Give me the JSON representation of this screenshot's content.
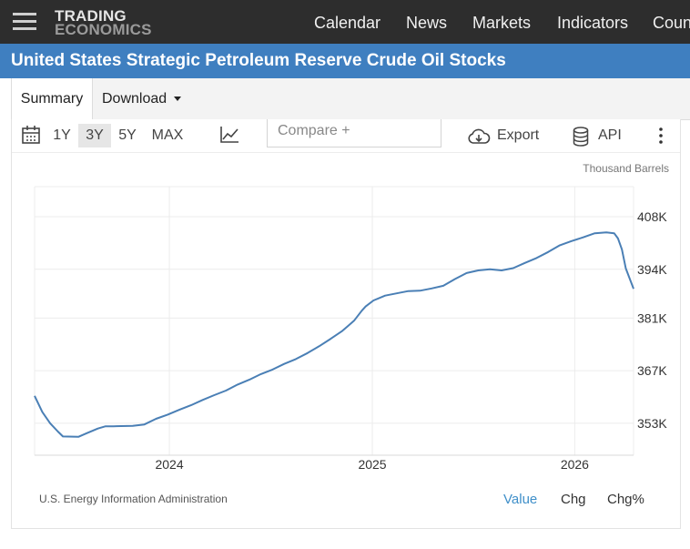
{
  "nav": {
    "logo_line1": "TRADING",
    "logo_line2": "ECONOMICS",
    "items": [
      "Calendar",
      "News",
      "Markets",
      "Indicators",
      "Coun"
    ]
  },
  "title": "United States Strategic Petroleum Reserve Crude Oil Stocks",
  "tabs": {
    "summary": "Summary",
    "download": "Download"
  },
  "toolbar": {
    "ranges": [
      "1Y",
      "3Y",
      "5Y",
      "MAX"
    ],
    "active_range": "3Y",
    "compare_placeholder": "Compare +",
    "export": "Export",
    "api": "API"
  },
  "footer": {
    "source": "U.S. Energy Information Administration",
    "value": "Value",
    "chg": "Chg",
    "chg_pct": "Chg%"
  },
  "colors": {
    "line": "#4a7fb5",
    "title_bar": "#3f7fc0",
    "nav_bg": "#2d2d2d",
    "active_link": "#3f8fc9"
  },
  "chart_data": {
    "type": "line",
    "unit_label": "Thousand Barrels",
    "x_ticks": [
      "2024",
      "2025",
      "2026"
    ],
    "y_ticks": [
      "408K",
      "394K",
      "381K",
      "367K",
      "353K"
    ],
    "ylim": [
      344.5,
      416
    ],
    "xlim": [
      "2023-05-03",
      "2026-04-17"
    ],
    "grid": true,
    "series": [
      {
        "values": [
          [
            "2023-05-03",
            360.3
          ],
          [
            "2023-05-17",
            356.0
          ],
          [
            "2023-05-31",
            353.0
          ],
          [
            "2023-06-14",
            350.8
          ],
          [
            "2023-06-23",
            349.5
          ],
          [
            "2023-07-21",
            349.4
          ],
          [
            "2023-08-04",
            350.3
          ],
          [
            "2023-08-25",
            351.6
          ],
          [
            "2023-09-08",
            352.2
          ],
          [
            "2023-09-22",
            352.2
          ],
          [
            "2023-10-27",
            352.3
          ],
          [
            "2023-11-17",
            352.7
          ],
          [
            "2023-12-08",
            354.2
          ],
          [
            "2023-12-29",
            355.3
          ],
          [
            "2024-01-19",
            356.6
          ],
          [
            "2024-02-09",
            357.8
          ],
          [
            "2024-03-01",
            359.2
          ],
          [
            "2024-03-22",
            360.5
          ],
          [
            "2024-04-12",
            361.7
          ],
          [
            "2024-05-03",
            363.3
          ],
          [
            "2024-05-24",
            364.6
          ],
          [
            "2024-06-14",
            366.1
          ],
          [
            "2024-07-05",
            367.3
          ],
          [
            "2024-07-26",
            368.8
          ],
          [
            "2024-08-16",
            370.1
          ],
          [
            "2024-09-06",
            371.7
          ],
          [
            "2024-09-27",
            373.5
          ],
          [
            "2024-10-18",
            375.5
          ],
          [
            "2024-11-08",
            377.6
          ],
          [
            "2024-11-29",
            380.3
          ],
          [
            "2024-12-13",
            383.0
          ],
          [
            "2024-12-20",
            384.1
          ],
          [
            "2025-01-03",
            385.7
          ],
          [
            "2025-01-24",
            387.0
          ],
          [
            "2025-02-14",
            387.6
          ],
          [
            "2025-03-07",
            388.2
          ],
          [
            "2025-03-28",
            388.3
          ],
          [
            "2025-04-18",
            388.9
          ],
          [
            "2025-05-09",
            389.6
          ],
          [
            "2025-05-30",
            391.4
          ],
          [
            "2025-06-20",
            393.0
          ],
          [
            "2025-07-11",
            393.7
          ],
          [
            "2025-08-01",
            394.0
          ],
          [
            "2025-08-22",
            393.7
          ],
          [
            "2025-09-12",
            394.3
          ],
          [
            "2025-10-03",
            395.7
          ],
          [
            "2025-10-24",
            397.0
          ],
          [
            "2025-11-14",
            398.6
          ],
          [
            "2025-12-05",
            400.4
          ],
          [
            "2025-12-26",
            401.5
          ],
          [
            "2026-01-16",
            402.5
          ],
          [
            "2026-02-06",
            403.6
          ],
          [
            "2026-02-27",
            403.8
          ],
          [
            "2026-03-13",
            403.6
          ],
          [
            "2026-03-20",
            402.2
          ],
          [
            "2026-03-27",
            399.3
          ],
          [
            "2026-04-03",
            394.2
          ],
          [
            "2026-04-17",
            388.8
          ]
        ]
      }
    ]
  }
}
